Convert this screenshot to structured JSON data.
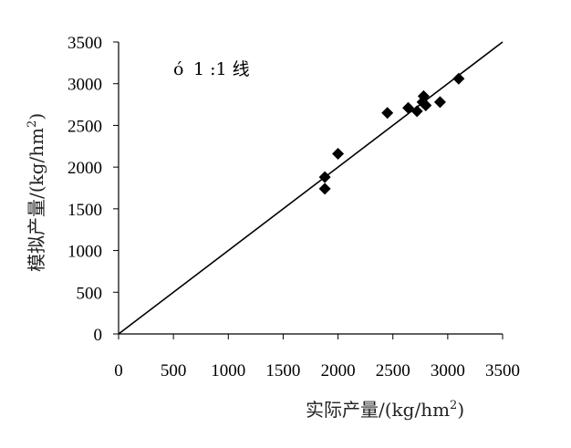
{
  "chart_data": {
    "type": "scatter",
    "xlabel": "实际产量/(kg/hm",
    "xlabel_sup": "2",
    "xlabel_end": ")",
    "ylabel": "模拟产量/(kg/hm",
    "ylabel_sup": "2",
    "ylabel_end": ")",
    "xlim": [
      0,
      3500
    ],
    "ylim": [
      0,
      3500
    ],
    "xticks": [
      "0",
      "500",
      "1000",
      "1500",
      "2000",
      "2500",
      "3000",
      "3500"
    ],
    "yticks": [
      "0",
      "500",
      "1000",
      "1500",
      "2000",
      "2500",
      "3000",
      "3500"
    ],
    "grid": false,
    "legend": {
      "marker": "ó",
      "text": "1 :1 线",
      "placement": "top-left"
    },
    "reference_line": {
      "from": [
        0,
        0
      ],
      "to": [
        3500,
        3500
      ]
    },
    "series": [
      {
        "marker": "diamond",
        "color": "#000000",
        "points": [
          [
            1880,
            1740
          ],
          [
            1880,
            1880
          ],
          [
            2000,
            2160
          ],
          [
            2450,
            2650
          ],
          [
            2640,
            2710
          ],
          [
            2720,
            2670
          ],
          [
            2770,
            2780
          ],
          [
            2780,
            2850
          ],
          [
            2800,
            2740
          ],
          [
            2930,
            2780
          ],
          [
            3100,
            3060
          ]
        ]
      }
    ]
  }
}
